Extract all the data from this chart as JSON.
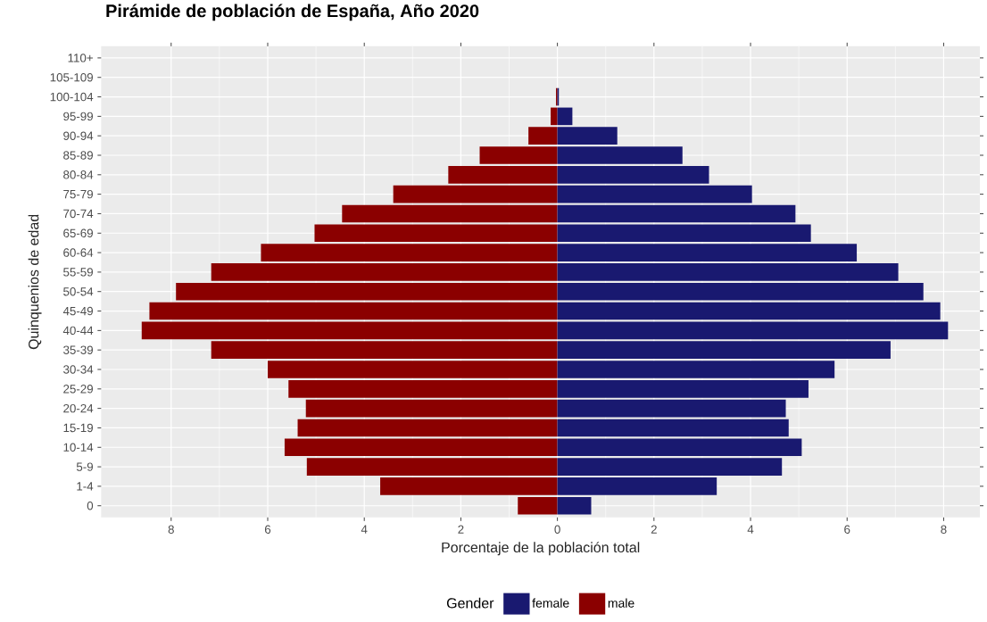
{
  "chart_data": {
    "type": "bar",
    "orientation": "horizontal",
    "title": "Pirámide de población de España, Año 2020",
    "xlabel": "Porcentaje de la población total",
    "ylabel": "Quinquenios de edad",
    "categories": [
      "110+",
      "105-109",
      "100-104",
      "95-99",
      "90-94",
      "85-89",
      "80-84",
      "75-79",
      "70-74",
      "65-69",
      "60-64",
      "55-59",
      "50-54",
      "45-49",
      "40-44",
      "35-39",
      "30-34",
      "25-29",
      "20-24",
      "15-19",
      "10-14",
      "5-9",
      "1-4",
      "0"
    ],
    "series": [
      {
        "name": "female",
        "color": "#191970",
        "values": [
          0,
          0,
          0.03,
          0.31,
          1.24,
          2.59,
          3.14,
          4.03,
          4.93,
          5.25,
          6.2,
          7.06,
          7.58,
          7.93,
          8.09,
          6.9,
          5.74,
          5.2,
          4.73,
          4.79,
          5.06,
          4.65,
          3.3,
          0.7
        ]
      },
      {
        "name": "male",
        "color": "#8b0000",
        "values": [
          0,
          0,
          -0.03,
          -0.14,
          -0.6,
          -1.61,
          -2.26,
          -3.4,
          -4.46,
          -5.03,
          -6.14,
          -7.17,
          -7.9,
          -8.45,
          -8.61,
          -7.17,
          -6.0,
          -5.57,
          -5.21,
          -5.38,
          -5.65,
          -5.19,
          -3.67,
          -0.82
        ]
      }
    ],
    "xlim": [
      -9.45,
      8.75
    ],
    "xticks": [
      {
        "value": -8,
        "label": "8"
      },
      {
        "value": -6,
        "label": "6"
      },
      {
        "value": -4,
        "label": "4"
      },
      {
        "value": -2,
        "label": "2"
      },
      0,
      2,
      4,
      6,
      8
    ],
    "stacked": true,
    "grid": true,
    "legend": "bottom",
    "legend_title": "Gender"
  }
}
